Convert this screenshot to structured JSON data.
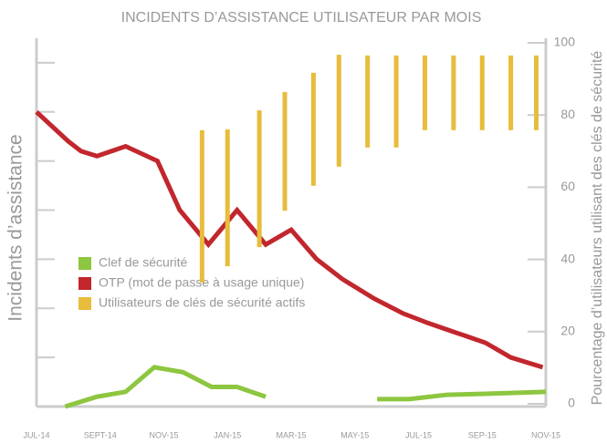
{
  "chart_data": {
    "type": "line",
    "title": "INCIDENTS D’ASSISTANCE UTILISATEUR PAR MOIS",
    "y_label": "Incidents d’assistance",
    "y2_label": "Pourcentage d’utilisateurs utilisant des clés de sécurité",
    "xlim": [
      0,
      16
    ],
    "xticks": [
      {
        "value": 0,
        "label": "JUL-14"
      },
      {
        "value": 2,
        "label": "SEPT-14"
      },
      {
        "value": 4,
        "label": "NOV-15"
      },
      {
        "value": 6,
        "label": "JAN-15"
      },
      {
        "value": 8,
        "label": "MAR-15"
      },
      {
        "value": 10,
        "label": "MAY-15"
      },
      {
        "value": 12,
        "label": "JUL-15"
      },
      {
        "value": 14,
        "label": "SEP-15"
      },
      {
        "value": 16,
        "label": "NOV-15"
      }
    ],
    "ylim": [
      0,
      7.5
    ],
    "yticks": [
      1,
      2,
      3,
      4,
      5,
      6,
      7
    ],
    "y2lim": [
      0,
      100
    ],
    "y2ticks": [
      0,
      20,
      40,
      60,
      80,
      100
    ],
    "series": [
      {
        "name": "Clef de sécurité",
        "color": "#8dc63f",
        "type": "line",
        "x": [
          0.9,
          1.9,
          2.8,
          3.7,
          4.6,
          5.5,
          6.3,
          7.2,
          null,
          10.7,
          11.7,
          12.9,
          14.1,
          16
        ],
        "values": [
          0,
          0.2,
          0.3,
          0.8,
          0.7,
          0.4,
          0.4,
          0.2,
          null,
          0.15,
          0.15,
          0.24,
          0.26,
          0.3
        ]
      },
      {
        "name": "OTP (mot de passe à usage unique)",
        "color": "#c1272d",
        "type": "line",
        "x": [
          0,
          1,
          1.4,
          1.9,
          2.8,
          3.8,
          4.5,
          5.4,
          6.3,
          7.2,
          8,
          8.8,
          9.6,
          10.6,
          11.5,
          12.3,
          13.2,
          14.1,
          14.9,
          15.9
        ],
        "values": [
          6,
          5.4,
          5.2,
          5.1,
          5.3,
          5,
          4,
          3.3,
          4,
          3.3,
          3.6,
          3,
          2.6,
          2.2,
          1.9,
          1.7,
          1.5,
          1.3,
          1,
          0.8
        ]
      },
      {
        "name": "Utilisateurs de clés de sécurité actifs",
        "color": "#e8bc3c",
        "type": "range",
        "axis": "y2",
        "x": [
          5.2,
          6,
          7,
          7.8,
          8.7,
          9.5,
          10.4,
          11.3,
          12.2,
          13.1,
          14,
          14.9,
          15.7
        ],
        "low": [
          33.6,
          38.1,
          43.4,
          53.5,
          60.4,
          65.7,
          71,
          71,
          75.8,
          75.8,
          75.8,
          75.8,
          75.8
        ],
        "values": [
          75.8,
          76,
          81.3,
          86.4,
          91.7,
          96.7,
          96.5,
          96.5,
          96.5,
          96.5,
          96.5,
          96.5,
          96.5
        ]
      }
    ]
  }
}
